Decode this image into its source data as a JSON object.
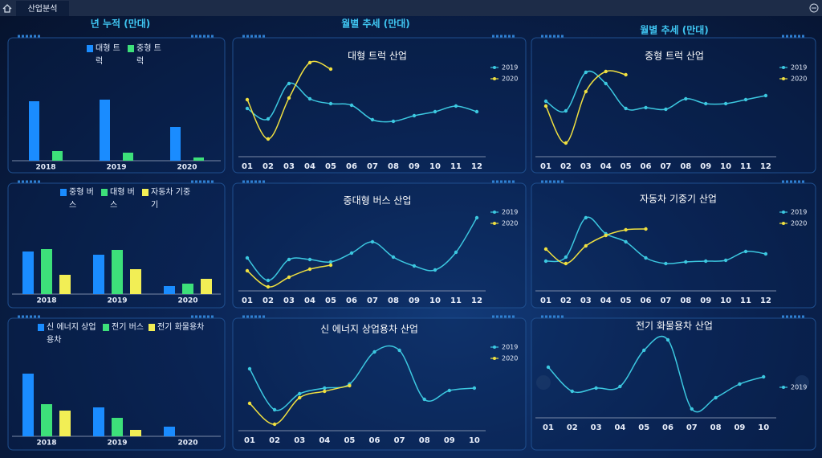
{
  "header": {
    "tab": "산업분석",
    "column_titles": [
      "년 누적 (만대)",
      "월별 추세 (만대)",
      "월별 추세 (만대)"
    ]
  },
  "chart_data": [
    {
      "type": "bar",
      "categories": [
        "2018",
        "2019",
        "2020"
      ],
      "series": [
        {
          "name": "대형 트럭",
          "color": "#1a8cff",
          "values": [
            74,
            76,
            42
          ]
        },
        {
          "name": "중형 트럭",
          "color": "#3de07a",
          "values": [
            12,
            10,
            4
          ]
        }
      ]
    },
    {
      "type": "bar",
      "categories": [
        "2018",
        "2019",
        "2020"
      ],
      "series": [
        {
          "name": "중형 버스",
          "color": "#1a8cff",
          "values": [
            53,
            49,
            10
          ]
        },
        {
          "name": "대형 버스",
          "color": "#3de07a",
          "values": [
            56,
            55,
            13
          ]
        },
        {
          "name": "자동차 기중기",
          "color": "#f2ee55",
          "values": [
            24,
            31,
            19
          ]
        }
      ]
    },
    {
      "type": "bar",
      "categories": [
        "2018",
        "2019",
        "2020"
      ],
      "series": [
        {
          "name": "신 에너지 상업용차",
          "color": "#1a8cff",
          "values": [
            78,
            36,
            12
          ]
        },
        {
          "name": "전기 버스",
          "color": "#3de07a",
          "values": [
            40,
            23,
            null
          ]
        },
        {
          "name": "전기 화물용차",
          "color": "#f2ee55",
          "values": [
            32,
            8,
            null
          ]
        }
      ]
    },
    {
      "type": "line",
      "title": "대형 트럭 산업",
      "categories": [
        "01",
        "02",
        "03",
        "04",
        "05",
        "06",
        "07",
        "08",
        "09",
        "10",
        "11",
        "12"
      ],
      "series": [
        {
          "name": "2019",
          "color": "#3cc8e0",
          "values": [
            60,
            47,
            91,
            72,
            66,
            64,
            46,
            44,
            51,
            56,
            63,
            56
          ]
        },
        {
          "name": "2020",
          "color": "#f0e040",
          "values": [
            71,
            22,
            73,
            117,
            109,
            null,
            null,
            null,
            null,
            null,
            null,
            null
          ]
        }
      ]
    },
    {
      "type": "line",
      "title": "중형 트럭 산업",
      "categories": [
        "01",
        "02",
        "03",
        "04",
        "05",
        "06",
        "07",
        "08",
        "09",
        "10",
        "11",
        "12"
      ],
      "series": [
        {
          "name": "2019",
          "color": "#3cc8e0",
          "values": [
            69,
            57,
            105,
            91,
            60,
            61,
            59,
            72,
            66,
            66,
            71,
            76
          ]
        },
        {
          "name": "2020",
          "color": "#f0e040",
          "values": [
            63,
            17,
            81,
            106,
            102,
            null,
            null,
            null,
            null,
            null,
            null,
            null
          ]
        }
      ]
    },
    {
      "type": "line",
      "title": "중대형 버스 산업",
      "categories": [
        "01",
        "02",
        "03",
        "04",
        "05",
        "06",
        "07",
        "08",
        "09",
        "10",
        "11",
        "12"
      ],
      "series": [
        {
          "name": "2019",
          "color": "#3cc8e0",
          "values": [
            41,
            13,
            39,
            39,
            36,
            47,
            61,
            42,
            31,
            26,
            48,
            91
          ]
        },
        {
          "name": "2020",
          "color": "#f0e040",
          "values": [
            25,
            5,
            17,
            27,
            32,
            null,
            null,
            null,
            null,
            null,
            null,
            null
          ]
        }
      ]
    },
    {
      "type": "line",
      "title": "자동차 기중기 산업",
      "categories": [
        "01",
        "02",
        "03",
        "04",
        "05",
        "06",
        "07",
        "08",
        "09",
        "10",
        "11",
        "12"
      ],
      "series": [
        {
          "name": "2019",
          "color": "#3cc8e0",
          "values": [
            37,
            42,
            91,
            71,
            61,
            41,
            34,
            36,
            37,
            38,
            49,
            46
          ]
        },
        {
          "name": "2020",
          "color": "#f0e040",
          "values": [
            52,
            34,
            56,
            69,
            76,
            77,
            null,
            null,
            null,
            null,
            null,
            null
          ]
        }
      ]
    },
    {
      "type": "line",
      "title": "신 에너지 상업용차 산업",
      "categories": [
        "01",
        "02",
        "03",
        "04",
        "05",
        "06",
        "07",
        "08",
        "09",
        "10"
      ],
      "series": [
        {
          "name": "2019",
          "color": "#3cc8e0",
          "values": [
            77,
            26,
            46,
            53,
            58,
            98,
            100,
            39,
            50,
            53
          ]
        },
        {
          "name": "2020",
          "color": "#f0e040",
          "values": [
            34,
            8,
            41,
            49,
            56,
            null,
            null,
            null,
            null,
            null
          ]
        }
      ]
    },
    {
      "type": "line",
      "title": "전기 화물용차 산업",
      "categories": [
        "01",
        "02",
        "03",
        "04",
        "05",
        "06",
        "07",
        "08",
        "09",
        "10"
      ],
      "series": [
        {
          "name": "2019",
          "color": "#3cc8e0",
          "values": [
            63,
            33,
            37,
            39,
            84,
            97,
            11,
            25,
            42,
            51
          ]
        }
      ]
    }
  ]
}
